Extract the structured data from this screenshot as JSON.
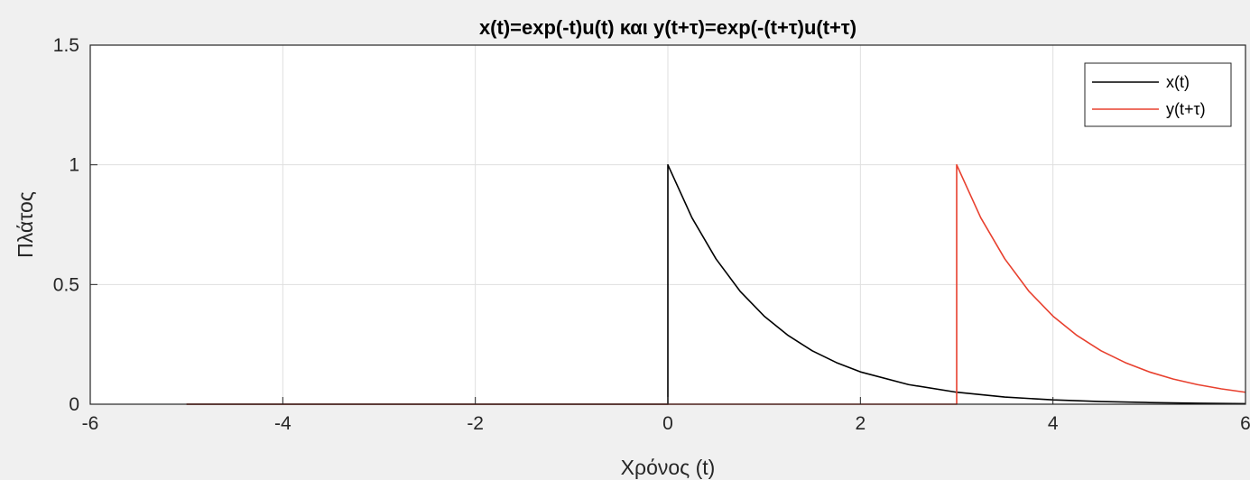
{
  "chart_data": {
    "type": "line",
    "title": "x(t)=exp(-t)u(t) και y(t+τ)=exp(-(t+τ)u(t+τ)",
    "xlabel": "Χρόνος (t)",
    "ylabel": "Πλάτος",
    "xlim": [
      -6,
      6
    ],
    "ylim": [
      0,
      1.5
    ],
    "xticks": [
      "-6",
      "-4",
      "-2",
      "0",
      "2",
      "4",
      "6"
    ],
    "yticks": [
      "0",
      "0.5",
      "1",
      "1.5"
    ],
    "grid": true,
    "legend_position": "top-right",
    "series": [
      {
        "name": "x(t)",
        "color": "#000000",
        "x": [
          -5,
          0,
          0,
          0.25,
          0.5,
          0.75,
          1,
          1.25,
          1.5,
          1.75,
          2,
          2.5,
          3,
          3.5,
          4,
          4.5,
          5,
          5.5,
          6
        ],
        "y": [
          0,
          0,
          1,
          0.779,
          0.607,
          0.472,
          0.368,
          0.287,
          0.223,
          0.174,
          0.135,
          0.082,
          0.05,
          0.03,
          0.018,
          0.011,
          0.007,
          0.004,
          0.002
        ]
      },
      {
        "name": "y(t+τ)",
        "color": "#e8402e",
        "x": [
          -5,
          3,
          3,
          3.25,
          3.5,
          3.75,
          4,
          4.25,
          4.5,
          4.75,
          5,
          5.25,
          5.5,
          5.75,
          6
        ],
        "y": [
          0,
          0,
          1,
          0.779,
          0.607,
          0.472,
          0.368,
          0.287,
          0.223,
          0.174,
          0.135,
          0.105,
          0.082,
          0.064,
          0.05
        ]
      }
    ]
  }
}
